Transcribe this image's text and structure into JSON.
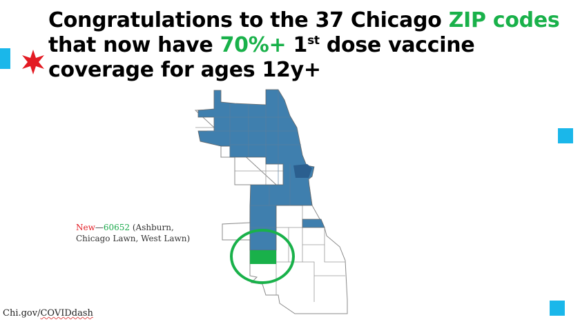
{
  "title": {
    "line1_pre": "Congratulations to the 37 Chicago ",
    "line1_highlight": "ZIP codes",
    "line2_pre": "that now have ",
    "line2_highlight": "70%+",
    "line2_num": " 1",
    "line2_sup": "st",
    "line2_post": " dose vaccine",
    "line3": "coverage for ages 12y+"
  },
  "annotation": {
    "new_label": "New",
    "dash": "—",
    "zip": "60652",
    "line1_rest": " (Ashburn,",
    "line2": "Chicago Lawn, West Lawn)"
  },
  "source": {
    "prefix": "Chi.gov/",
    "link": "COVIDdash"
  },
  "colors": {
    "accent_green": "#19b14a",
    "zip_blue": "#3f7fae",
    "highlight_zip": "#19b14a",
    "square_accent": "#1ab7ea",
    "star_red": "#e31b23"
  },
  "map": {
    "highlighted_zip": "60652",
    "zip_count_70_plus": 37
  }
}
